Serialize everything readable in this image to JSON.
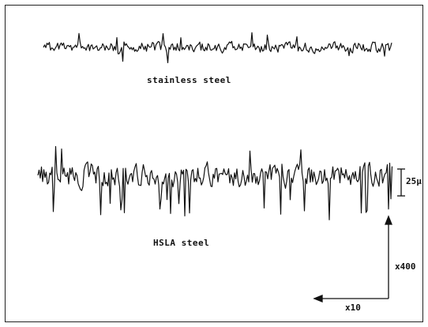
{
  "labels": {
    "stainless": "stainless steel",
    "hsla": "HSLA steel",
    "scale": "25µ",
    "vertical_magnification": "x400",
    "horizontal_magnification": "x10"
  },
  "colors": {
    "ink": "#111111",
    "background": "#ffffff"
  }
}
